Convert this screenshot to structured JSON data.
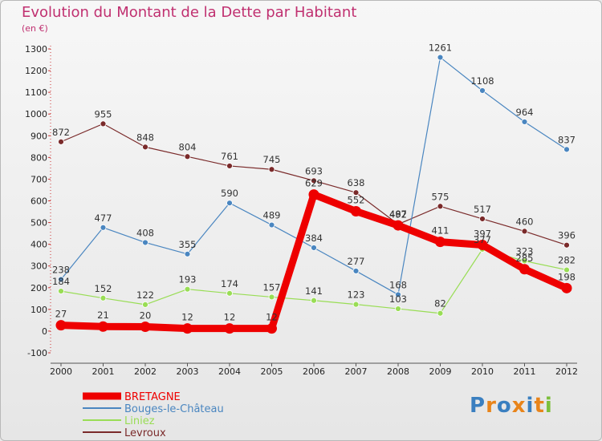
{
  "chart_data": {
    "type": "line",
    "title": "Evolution du Montant de la Dette par Habitant",
    "subtitle": "(en €)",
    "categories": [
      "2000",
      "2001",
      "2002",
      "2003",
      "2004",
      "2005",
      "2006",
      "2007",
      "2008",
      "2009",
      "2010",
      "2011",
      "2012"
    ],
    "ylim": [
      -100,
      1300
    ],
    "yticks": [
      -100,
      0,
      100,
      200,
      300,
      400,
      500,
      600,
      700,
      800,
      900,
      1000,
      1100,
      1200,
      1300
    ],
    "grid": false,
    "legend_placement": "bottom-left",
    "series": [
      {
        "name": "BRETAGNE",
        "color": "#ee0000",
        "values": [
          27,
          21,
          20,
          12,
          12,
          12,
          629,
          552,
          487,
          411,
          397,
          285,
          198
        ]
      },
      {
        "name": "Bouges-le-Château",
        "color": "#4a86c0",
        "values": [
          238,
          477,
          408,
          355,
          590,
          489,
          384,
          277,
          168,
          1261,
          1108,
          964,
          837
        ]
      },
      {
        "name": "Liniez",
        "color": "#99dd55",
        "values": [
          184,
          152,
          122,
          193,
          174,
          157,
          141,
          123,
          103,
          82,
          377,
          323,
          282
        ]
      },
      {
        "name": "Levroux",
        "color": "#7a2a2a",
        "values": [
          872,
          955,
          848,
          804,
          761,
          745,
          693,
          638,
          492,
          575,
          517,
          460,
          396
        ]
      }
    ]
  },
  "logo": {
    "letters": [
      "P",
      "r",
      "o",
      "x",
      "i",
      "t",
      "i"
    ],
    "colors": [
      "#3a7fc0",
      "#e8841a",
      "#3a7fc0",
      "#e8841a",
      "#3a7fc0",
      "#e8841a",
      "#7cbf3a"
    ]
  }
}
